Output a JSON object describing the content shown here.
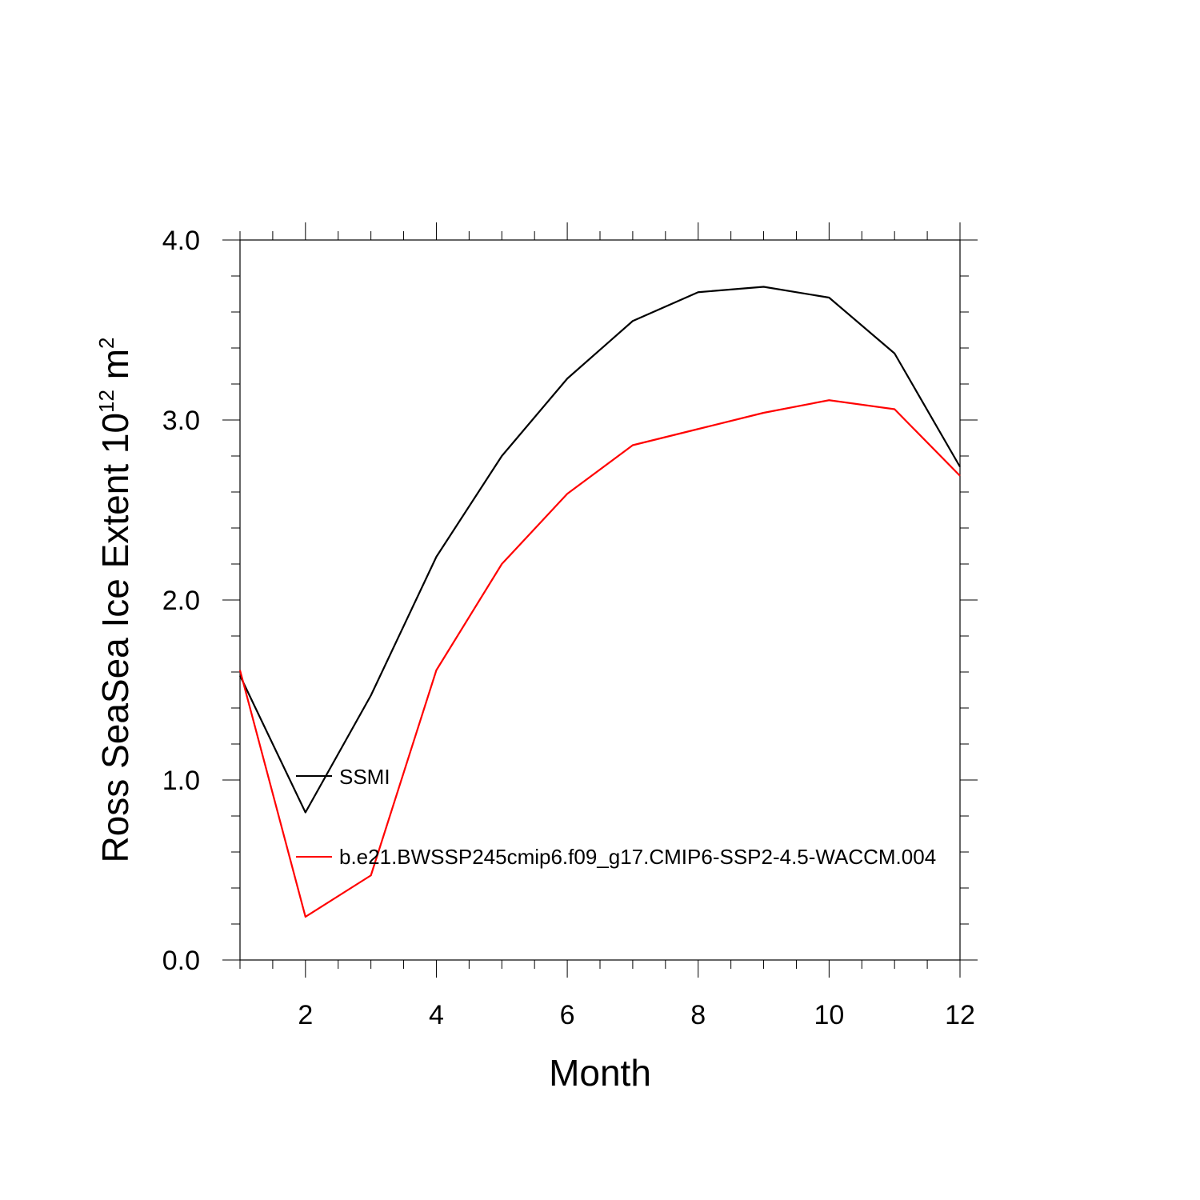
{
  "chart_data": {
    "type": "line",
    "title": "",
    "xlabel": "Month",
    "ylabel": {
      "prefix": "Ross SeaSea Ice Extent 10",
      "exponent": "12",
      "unit": " m",
      "unit_exponent": "2"
    },
    "xlim": [
      1,
      12
    ],
    "ylim": [
      0,
      4
    ],
    "x_ticks": [
      2,
      4,
      6,
      8,
      10,
      12
    ],
    "y_ticks": [
      "0.0",
      "1.0",
      "2.0",
      "3.0",
      "4.0"
    ],
    "x": [
      1,
      2,
      3,
      4,
      5,
      6,
      7,
      8,
      9,
      10,
      11,
      12
    ],
    "series": [
      {
        "name": "SSMI",
        "color": "#000000",
        "values": [
          1.58,
          0.82,
          1.47,
          2.24,
          2.8,
          3.23,
          3.55,
          3.71,
          3.74,
          3.68,
          3.37,
          2.74
        ]
      },
      {
        "name": "b.e21.BWSSP245cmip6.f09_g17.CMIP6-SSP2-4.5-WACCM.004",
        "color": "#ff0000",
        "values": [
          1.61,
          0.24,
          0.47,
          1.61,
          2.2,
          2.59,
          2.86,
          2.95,
          3.04,
          3.11,
          3.06,
          2.69
        ]
      }
    ],
    "grid": false,
    "legend_position": "inside-left"
  }
}
